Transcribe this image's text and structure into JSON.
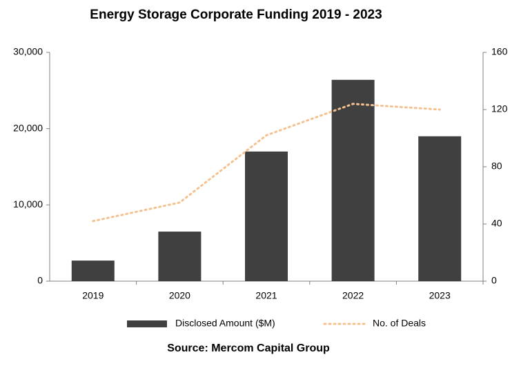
{
  "chart_data": {
    "type": "bar",
    "title": "Energy Storage Corporate Funding 2019 - 2023",
    "source": "Source: Mercom Capital Group",
    "categories": [
      "2019",
      "2020",
      "2021",
      "2022",
      "2023"
    ],
    "series": [
      {
        "name": "Disclosed Amount ($M)",
        "type": "bar",
        "color": "#404040",
        "values": [
          2700,
          6500,
          17000,
          26400,
          19000
        ]
      },
      {
        "name": "No. of Deals",
        "type": "line",
        "style": "dotted",
        "axis": "y2",
        "color": "#f5c18f",
        "values": [
          42,
          55,
          102,
          124,
          120
        ]
      }
    ],
    "ylim": [
      0,
      30000
    ],
    "yticks": [
      0,
      {
        "value": 10000,
        "label": "10,000"
      },
      {
        "value": 20000,
        "label": "20,000"
      },
      {
        "value": 30000,
        "label": "30,000"
      }
    ],
    "y2lim": [
      0,
      160
    ],
    "y2ticks": [
      0,
      40,
      80,
      120,
      160
    ],
    "grid": false,
    "legend": "bottom"
  }
}
